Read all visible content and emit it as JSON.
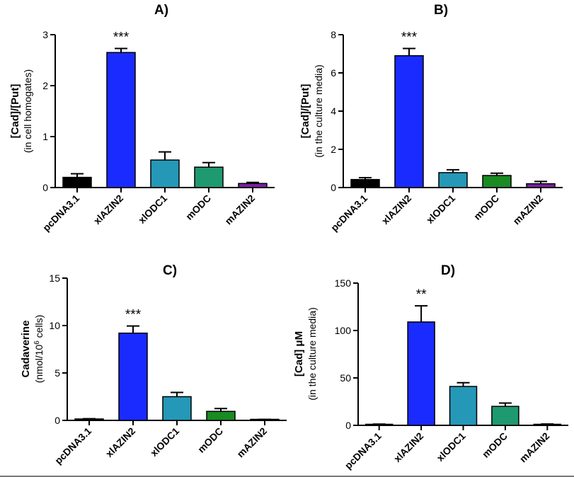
{
  "chart_data": [
    {
      "type": "bar",
      "title": "A)",
      "ylabel": "[Cad]/[Put]",
      "ylabel2": "(in cell homogates)",
      "categories": [
        "pcDNA3.1",
        "xlAZIN2",
        "xlODC1",
        "mODC",
        "mAZIN2"
      ],
      "values": [
        0.2,
        2.65,
        0.54,
        0.4,
        0.08
      ],
      "errors": [
        0.07,
        0.08,
        0.16,
        0.09,
        0.02
      ],
      "colors": [
        "#000000",
        "#1a2bff",
        "#2598b8",
        "#1e9970",
        "#7a1fa0"
      ],
      "annotations": [
        "",
        "***",
        "",
        "",
        ""
      ],
      "ylim": [
        0,
        3
      ],
      "yticks": [
        "0",
        "1",
        "2",
        "3"
      ],
      "ytick_values": [
        0,
        1,
        2,
        3
      ]
    },
    {
      "type": "bar",
      "title": "B)",
      "ylabel": "[Cad]/[Put]",
      "ylabel2": "(in the culture media)",
      "categories": [
        "pcDNA3.1",
        "xlAZIN2",
        "xlODC1",
        "mODC",
        "mAZIN2"
      ],
      "values": [
        0.42,
        6.9,
        0.78,
        0.63,
        0.2
      ],
      "errors": [
        0.1,
        0.38,
        0.15,
        0.12,
        0.12
      ],
      "colors": [
        "#000000",
        "#1a2bff",
        "#2598b8",
        "#1a8a22",
        "#7a1fa0"
      ],
      "annotations": [
        "",
        "***",
        "",
        "",
        ""
      ],
      "ylim": [
        0,
        8
      ],
      "yticks": [
        "0",
        "2",
        "4",
        "6",
        "8"
      ],
      "ytick_values": [
        0,
        2,
        4,
        6,
        8
      ]
    },
    {
      "type": "bar",
      "title": "C)",
      "ylabel": "Cadaverine",
      "ylabel2_main": "(nmol/10",
      "ylabel2_sup": "6",
      "ylabel2_tail": " cells)",
      "categories": [
        "pcDNA3.1",
        "xlAZIN2",
        "xlODC1",
        "mODC",
        "mAZIN2"
      ],
      "values": [
        0.15,
        9.2,
        2.5,
        0.95,
        0.08
      ],
      "errors": [
        0.03,
        0.75,
        0.45,
        0.3,
        0.02
      ],
      "colors": [
        "#000000",
        "#1a2bff",
        "#2598b8",
        "#1a8a22",
        "#7a1fa0"
      ],
      "annotations": [
        "",
        "***",
        "",
        "",
        ""
      ],
      "ylim": [
        0,
        15
      ],
      "yticks": [
        "0",
        "5",
        "10",
        "15"
      ],
      "ytick_values": [
        0,
        5,
        10,
        15
      ]
    },
    {
      "type": "bar",
      "title": "D)",
      "ylabel": "[Cad]  μM",
      "ylabel2": "(in the culture media)",
      "categories": [
        "pcDNA3.1",
        "xlAZIN2",
        "xlODC1",
        "mODC",
        "mAZIN2"
      ],
      "values": [
        1.0,
        109,
        41,
        20,
        1.0
      ],
      "errors": [
        0.3,
        17,
        4,
        3.5,
        0.4
      ],
      "colors": [
        "#000000",
        "#1a2bff",
        "#2598b8",
        "#1e9970",
        "#7a1fa0"
      ],
      "annotations": [
        "",
        "**",
        "",
        "",
        ""
      ],
      "ylim": [
        0,
        150
      ],
      "yticks": [
        "0",
        "50",
        "100",
        "150"
      ],
      "ytick_values": [
        0,
        50,
        100,
        150
      ]
    }
  ]
}
